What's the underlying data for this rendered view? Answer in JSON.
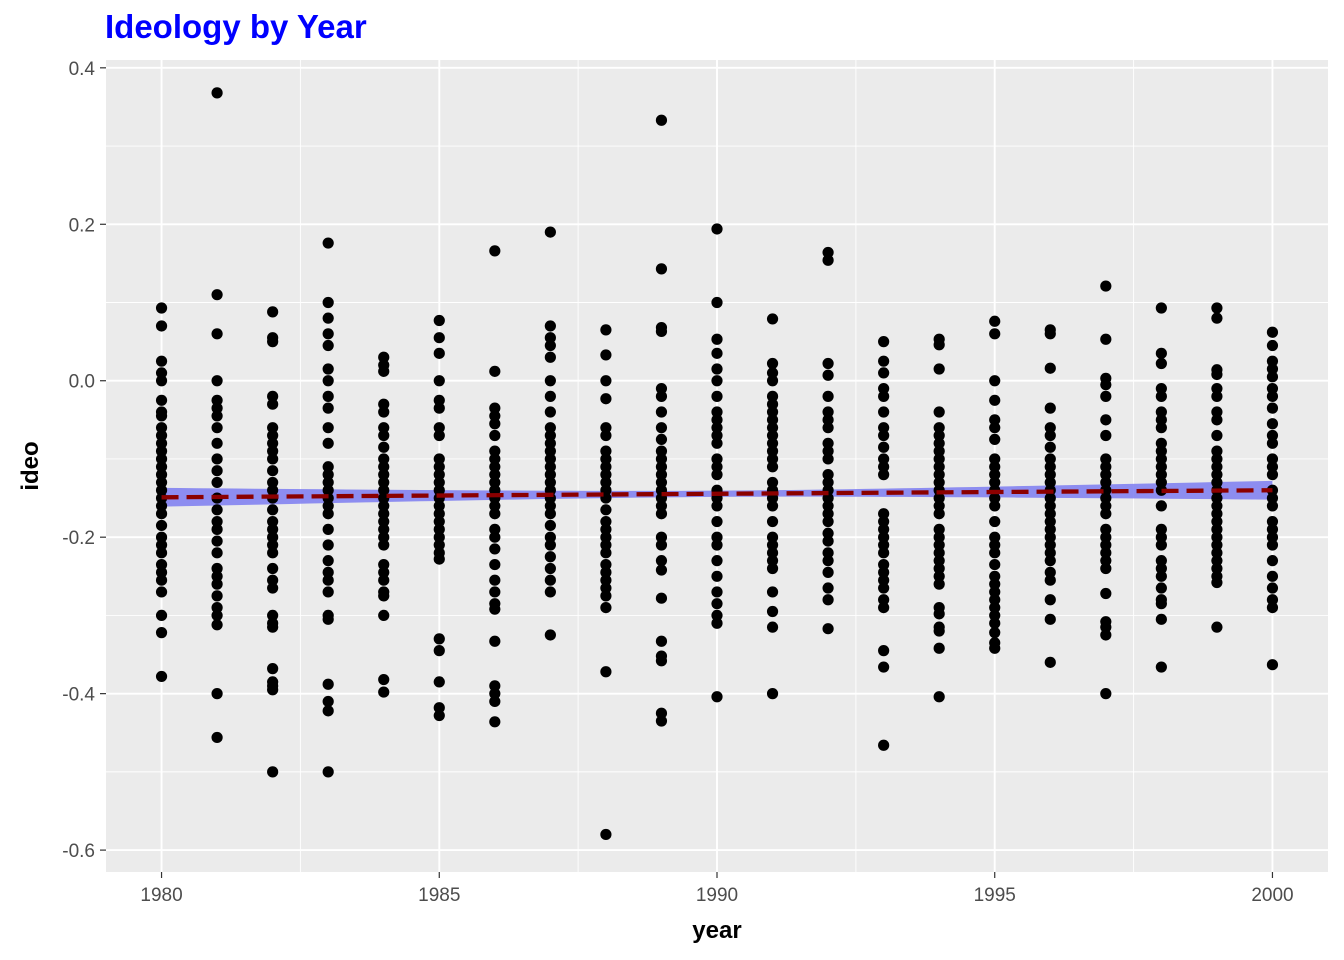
{
  "chart_data": {
    "type": "scatter",
    "title": "Ideology by Year",
    "xlabel": "year",
    "ylabel": "ideo",
    "xlim": [
      1979,
      2001
    ],
    "ylim": [
      -0.628,
      0.41
    ],
    "x_ticks": [
      1980,
      1985,
      1990,
      1995,
      2000
    ],
    "x_tick_labels": [
      "1980",
      "1985",
      "1990",
      "1995",
      "2000"
    ],
    "y_ticks": [
      -0.6,
      -0.4,
      -0.2,
      0.0,
      0.2,
      0.4
    ],
    "y_tick_labels": [
      "-0.6",
      "-0.4",
      "-0.2",
      "0.0",
      "0.2",
      "0.4"
    ],
    "grid": true,
    "colors": {
      "panel": "#EBEBEB",
      "grid": "#FFFFFF",
      "points": "#000000",
      "trend_line": "#8B0000",
      "confidence_band": "#8080F0",
      "title": "#0000FF"
    },
    "trend": {
      "x": [
        1980,
        2000
      ],
      "y": [
        -0.149,
        -0.14
      ],
      "ci_half_width_ends": 0.012,
      "ci_half_width_mid": 0.004,
      "line_style": "dashed"
    },
    "points_by_year": [
      {
        "year": 1980,
        "ideo": [
          0.093,
          0.07,
          0.025,
          0.01,
          0.0,
          -0.025,
          -0.04,
          -0.045,
          -0.06,
          -0.07,
          -0.08,
          -0.09,
          -0.1,
          -0.11,
          -0.12,
          -0.13,
          -0.14,
          -0.15,
          -0.16,
          -0.17,
          -0.185,
          -0.2,
          -0.21,
          -0.22,
          -0.235,
          -0.245,
          -0.255,
          -0.27,
          -0.3,
          -0.322,
          -0.378
        ]
      },
      {
        "year": 1981,
        "ideo": [
          0.368,
          0.11,
          0.06,
          0.0,
          -0.025,
          -0.035,
          -0.045,
          -0.06,
          -0.08,
          -0.1,
          -0.115,
          -0.13,
          -0.15,
          -0.165,
          -0.18,
          -0.19,
          -0.205,
          -0.22,
          -0.24,
          -0.25,
          -0.26,
          -0.275,
          -0.29,
          -0.3,
          -0.312,
          -0.4,
          -0.456
        ]
      },
      {
        "year": 1982,
        "ideo": [
          0.088,
          0.055,
          0.05,
          -0.02,
          -0.03,
          -0.06,
          -0.07,
          -0.08,
          -0.09,
          -0.1,
          -0.115,
          -0.13,
          -0.14,
          -0.15,
          -0.165,
          -0.18,
          -0.19,
          -0.2,
          -0.21,
          -0.22,
          -0.24,
          -0.255,
          -0.265,
          -0.3,
          -0.31,
          -0.315,
          -0.368,
          -0.385,
          -0.39,
          -0.395,
          -0.5
        ]
      },
      {
        "year": 1983,
        "ideo": [
          0.176,
          0.1,
          0.08,
          0.06,
          0.045,
          0.015,
          0.0,
          -0.02,
          -0.035,
          -0.06,
          -0.08,
          -0.11,
          -0.12,
          -0.13,
          -0.14,
          -0.15,
          -0.16,
          -0.17,
          -0.19,
          -0.21,
          -0.23,
          -0.245,
          -0.255,
          -0.27,
          -0.3,
          -0.305,
          -0.388,
          -0.41,
          -0.422,
          -0.5
        ]
      },
      {
        "year": 1984,
        "ideo": [
          0.03,
          0.02,
          0.012,
          -0.03,
          -0.04,
          -0.06,
          -0.07,
          -0.085,
          -0.1,
          -0.11,
          -0.12,
          -0.13,
          -0.14,
          -0.15,
          -0.16,
          -0.17,
          -0.18,
          -0.19,
          -0.2,
          -0.21,
          -0.235,
          -0.245,
          -0.255,
          -0.27,
          -0.275,
          -0.3,
          -0.382,
          -0.398
        ]
      },
      {
        "year": 1985,
        "ideo": [
          0.077,
          0.055,
          0.035,
          0.0,
          -0.025,
          -0.035,
          -0.06,
          -0.07,
          -0.1,
          -0.11,
          -0.12,
          -0.13,
          -0.14,
          -0.15,
          -0.16,
          -0.17,
          -0.18,
          -0.19,
          -0.2,
          -0.21,
          -0.22,
          -0.228,
          -0.33,
          -0.345,
          -0.385,
          -0.418,
          -0.428
        ]
      },
      {
        "year": 1986,
        "ideo": [
          0.166,
          0.012,
          -0.035,
          -0.045,
          -0.055,
          -0.07,
          -0.09,
          -0.1,
          -0.11,
          -0.12,
          -0.13,
          -0.14,
          -0.15,
          -0.16,
          -0.17,
          -0.19,
          -0.2,
          -0.215,
          -0.235,
          -0.255,
          -0.27,
          -0.285,
          -0.292,
          -0.333,
          -0.39,
          -0.4,
          -0.41,
          -0.436
        ]
      },
      {
        "year": 1987,
        "ideo": [
          0.19,
          0.07,
          0.055,
          0.045,
          0.03,
          0.0,
          -0.02,
          -0.04,
          -0.06,
          -0.07,
          -0.08,
          -0.09,
          -0.1,
          -0.11,
          -0.12,
          -0.13,
          -0.14,
          -0.15,
          -0.16,
          -0.17,
          -0.185,
          -0.2,
          -0.21,
          -0.225,
          -0.24,
          -0.255,
          -0.27,
          -0.325
        ]
      },
      {
        "year": 1988,
        "ideo": [
          0.065,
          0.033,
          0.0,
          -0.023,
          -0.06,
          -0.07,
          -0.09,
          -0.1,
          -0.11,
          -0.12,
          -0.13,
          -0.14,
          -0.15,
          -0.165,
          -0.18,
          -0.19,
          -0.2,
          -0.21,
          -0.22,
          -0.235,
          -0.245,
          -0.255,
          -0.265,
          -0.275,
          -0.29,
          -0.372,
          -0.58
        ]
      },
      {
        "year": 1989,
        "ideo": [
          0.333,
          0.143,
          0.068,
          0.063,
          -0.01,
          -0.02,
          -0.04,
          -0.06,
          -0.075,
          -0.09,
          -0.1,
          -0.11,
          -0.12,
          -0.13,
          -0.14,
          -0.15,
          -0.16,
          -0.17,
          -0.2,
          -0.21,
          -0.23,
          -0.242,
          -0.278,
          -0.333,
          -0.352,
          -0.358,
          -0.425,
          -0.435
        ]
      },
      {
        "year": 1990,
        "ideo": [
          0.194,
          0.1,
          0.053,
          0.035,
          0.015,
          0.0,
          -0.02,
          -0.04,
          -0.05,
          -0.06,
          -0.07,
          -0.08,
          -0.1,
          -0.11,
          -0.12,
          -0.14,
          -0.15,
          -0.16,
          -0.18,
          -0.2,
          -0.21,
          -0.23,
          -0.25,
          -0.27,
          -0.285,
          -0.3,
          -0.31,
          -0.404
        ]
      },
      {
        "year": 1991,
        "ideo": [
          0.079,
          0.022,
          0.01,
          0.0,
          -0.02,
          -0.03,
          -0.04,
          -0.05,
          -0.06,
          -0.07,
          -0.08,
          -0.09,
          -0.1,
          -0.11,
          -0.13,
          -0.14,
          -0.15,
          -0.16,
          -0.18,
          -0.2,
          -0.21,
          -0.22,
          -0.23,
          -0.24,
          -0.27,
          -0.295,
          -0.315,
          -0.4
        ]
      },
      {
        "year": 1992,
        "ideo": [
          0.164,
          0.154,
          0.022,
          0.007,
          -0.02,
          -0.04,
          -0.05,
          -0.06,
          -0.08,
          -0.09,
          -0.1,
          -0.12,
          -0.13,
          -0.14,
          -0.15,
          -0.16,
          -0.17,
          -0.18,
          -0.195,
          -0.205,
          -0.22,
          -0.23,
          -0.245,
          -0.265,
          -0.28,
          -0.317
        ]
      },
      {
        "year": 1993,
        "ideo": [
          0.05,
          0.025,
          0.01,
          -0.01,
          -0.02,
          -0.04,
          -0.06,
          -0.07,
          -0.085,
          -0.1,
          -0.11,
          -0.12,
          -0.17,
          -0.18,
          -0.19,
          -0.2,
          -0.21,
          -0.22,
          -0.235,
          -0.245,
          -0.255,
          -0.265,
          -0.28,
          -0.29,
          -0.345,
          -0.366,
          -0.466
        ]
      },
      {
        "year": 1994,
        "ideo": [
          0.053,
          0.046,
          0.015,
          -0.04,
          -0.06,
          -0.07,
          -0.08,
          -0.09,
          -0.1,
          -0.11,
          -0.12,
          -0.13,
          -0.14,
          -0.15,
          -0.16,
          -0.17,
          -0.19,
          -0.2,
          -0.21,
          -0.22,
          -0.23,
          -0.24,
          -0.25,
          -0.26,
          -0.29,
          -0.298,
          -0.315,
          -0.32,
          -0.342,
          -0.404
        ]
      },
      {
        "year": 1995,
        "ideo": [
          0.076,
          0.06,
          0.0,
          -0.025,
          -0.05,
          -0.06,
          -0.075,
          -0.1,
          -0.11,
          -0.12,
          -0.13,
          -0.14,
          -0.15,
          -0.16,
          -0.18,
          -0.2,
          -0.21,
          -0.22,
          -0.235,
          -0.25,
          -0.26,
          -0.27,
          -0.28,
          -0.29,
          -0.3,
          -0.31,
          -0.322,
          -0.335,
          -0.342
        ]
      },
      {
        "year": 1996,
        "ideo": [
          0.065,
          0.06,
          0.016,
          -0.035,
          -0.06,
          -0.07,
          -0.085,
          -0.1,
          -0.11,
          -0.12,
          -0.13,
          -0.14,
          -0.15,
          -0.16,
          -0.17,
          -0.18,
          -0.19,
          -0.2,
          -0.21,
          -0.22,
          -0.23,
          -0.245,
          -0.255,
          -0.28,
          -0.305,
          -0.36
        ]
      },
      {
        "year": 1997,
        "ideo": [
          0.121,
          0.053,
          0.003,
          -0.005,
          -0.02,
          -0.05,
          -0.07,
          -0.1,
          -0.11,
          -0.12,
          -0.13,
          -0.14,
          -0.15,
          -0.16,
          -0.17,
          -0.19,
          -0.2,
          -0.21,
          -0.22,
          -0.23,
          -0.24,
          -0.272,
          -0.308,
          -0.315,
          -0.325,
          -0.4
        ]
      },
      {
        "year": 1998,
        "ideo": [
          0.093,
          0.035,
          0.022,
          -0.01,
          -0.02,
          -0.04,
          -0.05,
          -0.06,
          -0.08,
          -0.09,
          -0.1,
          -0.11,
          -0.12,
          -0.13,
          -0.14,
          -0.16,
          -0.19,
          -0.2,
          -0.21,
          -0.23,
          -0.24,
          -0.25,
          -0.265,
          -0.28,
          -0.285,
          -0.305,
          -0.366
        ]
      },
      {
        "year": 1999,
        "ideo": [
          0.093,
          0.08,
          0.014,
          0.008,
          -0.01,
          -0.02,
          -0.04,
          -0.05,
          -0.07,
          -0.09,
          -0.1,
          -0.11,
          -0.12,
          -0.13,
          -0.14,
          -0.15,
          -0.16,
          -0.17,
          -0.18,
          -0.19,
          -0.2,
          -0.21,
          -0.22,
          -0.23,
          -0.24,
          -0.25,
          -0.258,
          -0.315
        ]
      },
      {
        "year": 2000,
        "ideo": [
          0.062,
          0.045,
          0.025,
          0.015,
          0.005,
          -0.01,
          -0.02,
          -0.035,
          -0.055,
          -0.07,
          -0.08,
          -0.1,
          -0.11,
          -0.12,
          -0.14,
          -0.15,
          -0.16,
          -0.18,
          -0.19,
          -0.2,
          -0.21,
          -0.23,
          -0.25,
          -0.265,
          -0.28,
          -0.29,
          -0.363
        ]
      }
    ]
  }
}
